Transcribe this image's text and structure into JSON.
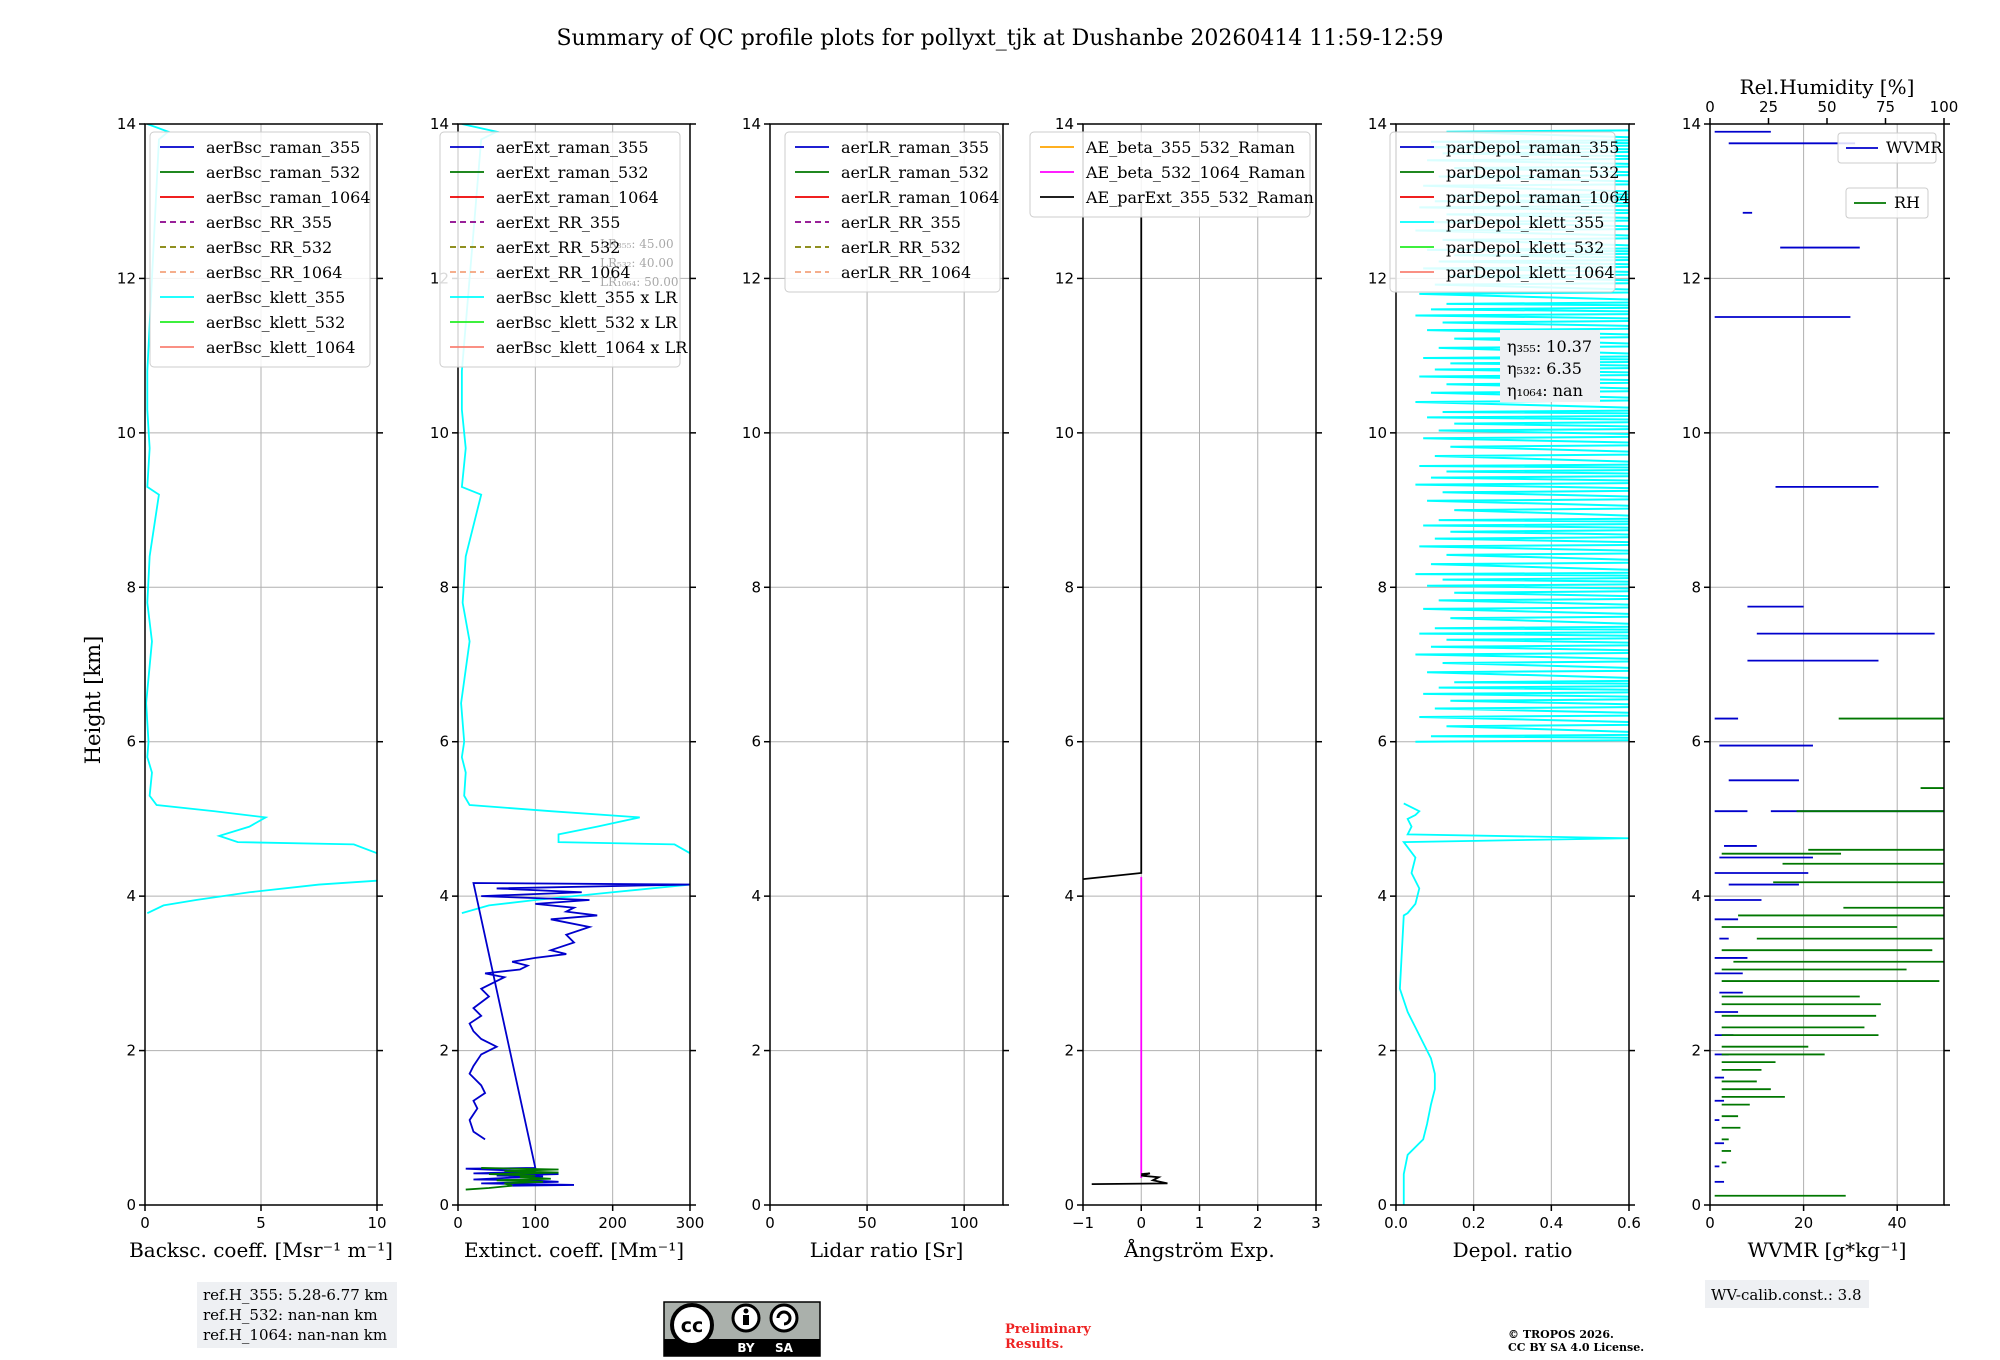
{
  "title": "Summary of QC profile plots for pollyxt_tjk at Dushanbe 20260414 11:59-12:59",
  "colors": {
    "raman355": "#0000cc",
    "raman532": "#007700",
    "raman1064": "#ee0000",
    "rr355": "#8b008b",
    "rr532": "#808000",
    "rr1064": "#f4a27c",
    "klett355": "#00ffff",
    "klett532": "#22ee22",
    "klett1064": "#fa8072",
    "ae1": "#ffa500",
    "ae2": "#ff00ff",
    "ae3": "#000000",
    "wvmr": "#0000cc",
    "rh": "#007700"
  },
  "chart_data": [
    {
      "type": "line",
      "id": "bsc",
      "xlabel": "Backsc. coeff. [Msr⁻¹ m⁻¹]",
      "ylabel": "Height [km]",
      "xlim": [
        0,
        10
      ],
      "ylim": [
        0,
        14
      ],
      "xticks": [
        0,
        5,
        10
      ],
      "yticks": [
        0,
        2,
        4,
        6,
        8,
        10,
        12,
        14
      ],
      "legend": [
        "aerBsc_raman_355",
        "aerBsc_raman_532",
        "aerBsc_raman_1064",
        "aerBsc_RR_355",
        "aerBsc_RR_532",
        "aerBsc_RR_1064",
        "aerBsc_klett_355",
        "aerBsc_klett_532",
        "aerBsc_klett_1064"
      ],
      "series": [
        {
          "name": "aerBsc_klett_355",
          "color": "klett355",
          "x": [
            0.1,
            0.8,
            2.2,
            4.5,
            7.5,
            10.0,
            10.5,
            9.0,
            4.0,
            3.2,
            4.5,
            5.2,
            3.0,
            0.5,
            0.2,
            0.3,
            0.1,
            0.15,
            0.05,
            0.3,
            0.1,
            0.2,
            0.6,
            0.1,
            0.2,
            0.1,
            0.1,
            0.6,
            1.0,
            0.1
          ],
          "y": [
            3.78,
            3.88,
            3.95,
            4.05,
            4.15,
            4.2,
            4.5,
            4.67,
            4.7,
            4.78,
            4.9,
            5.02,
            5.1,
            5.18,
            5.3,
            5.6,
            5.8,
            6.0,
            6.5,
            7.3,
            7.8,
            8.4,
            9.2,
            9.3,
            9.8,
            10.3,
            10.8,
            13.8,
            13.9,
            14.0
          ]
        }
      ],
      "refs": [
        "ref.H_355: 5.28-6.77 km",
        "ref.H_532: nan-nan km",
        "ref.H_1064: nan-nan km"
      ]
    },
    {
      "type": "line",
      "id": "ext",
      "xlabel": "Extinct. coeff. [Mm⁻¹]",
      "xlim": [
        0,
        300
      ],
      "ylim": [
        0,
        14
      ],
      "xticks": [
        0,
        100,
        200,
        300
      ],
      "yticks": [
        0,
        2,
        4,
        6,
        8,
        10,
        12,
        14
      ],
      "legend": [
        "aerExt_raman_355",
        "aerExt_raman_532",
        "aerExt_raman_1064",
        "aerExt_RR_355",
        "aerExt_RR_532",
        "aerExt_RR_1064",
        "aerBsc_klett_355 x LR",
        "aerBsc_klett_532 x LR",
        "aerBsc_klett_1064 x LR"
      ],
      "lr_notes": [
        "LR₃₅₅: 45.00",
        "LR₅₃₂: 40.00",
        "LR₁₀₆₄: 50.00"
      ],
      "series": [
        {
          "name": "aerBsc_klett_355 x LR",
          "color": "klett355",
          "x": [
            5,
            40,
            100,
            200,
            300,
            310,
            280,
            130,
            130,
            180,
            235,
            120,
            15,
            8,
            10,
            5,
            8,
            4,
            15,
            6,
            10,
            30,
            5,
            10,
            5,
            5,
            30,
            50,
            5
          ],
          "y": [
            3.78,
            3.88,
            3.95,
            4.05,
            4.15,
            4.5,
            4.67,
            4.7,
            4.8,
            4.9,
            5.02,
            5.1,
            5.18,
            5.3,
            5.6,
            5.8,
            6.0,
            6.5,
            7.3,
            7.8,
            8.4,
            9.2,
            9.3,
            9.8,
            10.3,
            10.8,
            13.8,
            13.9,
            14.0
          ]
        },
        {
          "name": "aerExt_raman_355",
          "color": "raman355",
          "x": [
            35,
            20,
            15,
            25,
            20,
            35,
            30,
            15,
            20,
            30,
            50,
            30,
            20,
            15,
            30,
            20,
            40,
            30,
            50,
            60,
            35,
            80,
            90,
            70,
            100,
            140,
            120,
            150,
            140,
            170,
            120,
            180,
            140,
            150,
            100,
            170,
            30,
            160,
            50,
            300,
            20,
            100,
            10,
            60,
            100,
            20,
            130,
            50,
            110,
            60,
            20,
            90,
            130,
            30,
            150,
            70
          ],
          "y": [
            0.85,
            0.95,
            1.1,
            1.25,
            1.35,
            1.45,
            1.55,
            1.7,
            1.8,
            1.95,
            2.05,
            2.15,
            2.25,
            2.35,
            2.45,
            2.55,
            2.7,
            2.8,
            2.9,
            2.95,
            3.0,
            3.05,
            3.1,
            3.15,
            3.2,
            3.25,
            3.3,
            3.4,
            3.5,
            3.6,
            3.7,
            3.75,
            3.8,
            3.85,
            3.9,
            3.95,
            4.0,
            4.05,
            4.1,
            4.15,
            4.17,
            0.48,
            0.47,
            0.45,
            0.43,
            0.41,
            0.4,
            0.38,
            0.37,
            0.35,
            0.33,
            0.32,
            0.3,
            0.28,
            0.26,
            0.25
          ]
        },
        {
          "name": "aerExt_raman_532",
          "color": "raman532",
          "x": [
            10,
            40,
            70,
            60,
            110,
            50,
            120,
            80,
            100,
            40,
            130,
            60,
            130,
            30
          ],
          "y": [
            0.2,
            0.22,
            0.25,
            0.28,
            0.3,
            0.32,
            0.34,
            0.36,
            0.38,
            0.4,
            0.42,
            0.44,
            0.46,
            0.48
          ]
        }
      ]
    },
    {
      "type": "line",
      "id": "lr",
      "xlabel": "Lidar ratio [Sr]",
      "xlim": [
        0,
        120
      ],
      "ylim": [
        0,
        14
      ],
      "xticks": [
        0,
        50,
        100
      ],
      "yticks": [
        0,
        2,
        4,
        6,
        8,
        10,
        12,
        14
      ],
      "legend": [
        "aerLR_raman_355",
        "aerLR_raman_532",
        "aerLR_raman_1064",
        "aerLR_RR_355",
        "aerLR_RR_532",
        "aerLR_RR_1064"
      ],
      "series": []
    },
    {
      "type": "line",
      "id": "ae",
      "xlabel": "Ångström Exp.",
      "xlim": [
        -1,
        3
      ],
      "ylim": [
        0,
        14
      ],
      "xticks": [
        -1,
        0,
        1,
        2,
        3
      ],
      "yticks": [
        0,
        2,
        4,
        6,
        8,
        10,
        12,
        14
      ],
      "legend": [
        "AE_beta_355_532_Raman",
        "AE_beta_532_1064_Raman",
        "AE_parExt_355_532_Raman"
      ],
      "series": [
        {
          "name": "AE_beta_532_1064_Raman",
          "color": "ae2",
          "x": [
            0,
            0
          ],
          "y": [
            0.35,
            4.25
          ]
        },
        {
          "name": "AE_parExt_355_532_Raman",
          "color": "ae3",
          "x": [
            -1.0,
            0.0,
            0.0,
            0.0
          ],
          "y": [
            4.22,
            4.3,
            4.3,
            13.0
          ]
        },
        {
          "name": "AE_parExt_355_532_Raman low",
          "color": "ae3",
          "x": [
            -0.85,
            0.45,
            0.2,
            0.3,
            0.0,
            0.15,
            0.0
          ],
          "y": [
            0.27,
            0.28,
            0.32,
            0.36,
            0.38,
            0.41,
            0.4
          ]
        }
      ]
    },
    {
      "type": "line",
      "id": "depol",
      "xlabel": "Depol. ratio",
      "xlim": [
        0,
        0.6
      ],
      "ylim": [
        0,
        14
      ],
      "xticks": [
        0.0,
        0.2,
        0.4,
        0.6
      ],
      "yticks": [
        0,
        2,
        4,
        6,
        8,
        10,
        12,
        14
      ],
      "legend": [
        "parDepol_raman_355",
        "parDepol_raman_532",
        "parDepol_raman_1064",
        "parDepol_klett_355",
        "parDepol_klett_532",
        "parDepol_klett_1064"
      ],
      "eta": [
        "η₃₅₅: 10.37",
        "η₅₃₂: 6.35",
        "η₁₀₆₄: nan"
      ],
      "series": [
        {
          "name": "parDepol_klett_355",
          "color": "klett355",
          "x": [
            0.02,
            0.02,
            0.03,
            0.07,
            0.08,
            0.09,
            0.1,
            0.1,
            0.09,
            0.07,
            0.05,
            0.03,
            0.01,
            0.02,
            0.03,
            0.05,
            0.06,
            0.04,
            0.05,
            0.02,
            0.6,
            0.03,
            0.04,
            0.03,
            0.05,
            0.06,
            0.04,
            0.02
          ],
          "y": [
            0.0,
            0.4,
            0.65,
            0.85,
            1.05,
            1.3,
            1.5,
            1.7,
            1.9,
            2.1,
            2.3,
            2.5,
            2.8,
            3.75,
            3.78,
            3.9,
            4.1,
            4.3,
            4.5,
            4.7,
            4.75,
            4.8,
            4.9,
            5.0,
            5.05,
            5.1,
            5.15,
            5.2
          ]
        }
      ],
      "noise_band": {
        "ymin": 6.0,
        "ymax": 14.0,
        "x_inner": 0.05,
        "x_outer": 0.6
      }
    },
    {
      "type": "line",
      "id": "wv",
      "xlabel": "WVMR [g*kg⁻¹]",
      "top_xlabel": "Rel.Humidity [%]",
      "xlim": [
        0,
        50
      ],
      "ylim": [
        0,
        14
      ],
      "xticks": [
        0,
        20,
        40
      ],
      "top_xlim": [
        0,
        100
      ],
      "top_xticks": [
        0,
        25,
        50,
        75,
        100
      ],
      "yticks": [
        0,
        2,
        4,
        6,
        8,
        10,
        12,
        14
      ],
      "legend": [
        "WVMR",
        "RH"
      ],
      "calib": "WV-calib.const.: 3.8",
      "wvmr_segments": [
        [
          1,
          13.9,
          13
        ],
        [
          4,
          13.75,
          31
        ],
        [
          7,
          12.85,
          9
        ],
        [
          15,
          12.4,
          32
        ],
        [
          1,
          11.5,
          30
        ],
        [
          14,
          9.3,
          36
        ],
        [
          8,
          7.75,
          20
        ],
        [
          10,
          7.4,
          48
        ],
        [
          8,
          7.05,
          36
        ],
        [
          1,
          6.3,
          6
        ],
        [
          2,
          5.95,
          22
        ],
        [
          4,
          5.5,
          19
        ],
        [
          1,
          5.1,
          8
        ],
        [
          13,
          5.1,
          50
        ],
        [
          3,
          4.65,
          10
        ],
        [
          2,
          4.5,
          22
        ],
        [
          1,
          4.3,
          21
        ],
        [
          4,
          4.15,
          19
        ],
        [
          1,
          3.95,
          11
        ],
        [
          1,
          3.7,
          6
        ],
        [
          2,
          3.45,
          4
        ],
        [
          1,
          3.2,
          8
        ],
        [
          1,
          3.0,
          7
        ],
        [
          2,
          2.75,
          7
        ],
        [
          1,
          2.5,
          6
        ],
        [
          1,
          2.2,
          5
        ],
        [
          1,
          1.95,
          4
        ],
        [
          1,
          1.65,
          3
        ],
        [
          1,
          1.35,
          3
        ],
        [
          1,
          1.1,
          2
        ],
        [
          1,
          0.8,
          3
        ],
        [
          1,
          0.5,
          2
        ],
        [
          1,
          0.3,
          3
        ]
      ],
      "rh_segments": [
        [
          55,
          6.3,
          100
        ],
        [
          90,
          5.4,
          100
        ],
        [
          37,
          5.1,
          100
        ],
        [
          42,
          4.6,
          100
        ],
        [
          5,
          4.55,
          56
        ],
        [
          31,
          4.42,
          100
        ],
        [
          27,
          4.18,
          100
        ],
        [
          57,
          3.85,
          100
        ],
        [
          12,
          3.75,
          100
        ],
        [
          5,
          3.6,
          80
        ],
        [
          20,
          3.45,
          100
        ],
        [
          5,
          3.3,
          95
        ],
        [
          10,
          3.15,
          100
        ],
        [
          5,
          3.05,
          84
        ],
        [
          5,
          2.9,
          98
        ],
        [
          5,
          2.7,
          64
        ],
        [
          5,
          2.6,
          73
        ],
        [
          5,
          2.45,
          71
        ],
        [
          5,
          2.3,
          66
        ],
        [
          5,
          2.2,
          72
        ],
        [
          5,
          2.05,
          42
        ],
        [
          5,
          1.95,
          49
        ],
        [
          5,
          1.85,
          28
        ],
        [
          5,
          1.75,
          22
        ],
        [
          5,
          1.6,
          20
        ],
        [
          5,
          1.5,
          26
        ],
        [
          5,
          1.4,
          32
        ],
        [
          5,
          1.3,
          17
        ],
        [
          5,
          1.15,
          12
        ],
        [
          5,
          1.0,
          13
        ],
        [
          5,
          0.85,
          8
        ],
        [
          5,
          0.7,
          9
        ],
        [
          5,
          0.55,
          7
        ],
        [
          2,
          0.12,
          58
        ]
      ]
    }
  ],
  "footer": {
    "cc_by": "BY",
    "cc_sa": "SA",
    "cc_mark": "cc",
    "preliminary": [
      "Preliminary",
      "Results."
    ],
    "copyright": [
      "© TROPOS 2026.",
      "CC BY SA 4.0 License."
    ]
  }
}
